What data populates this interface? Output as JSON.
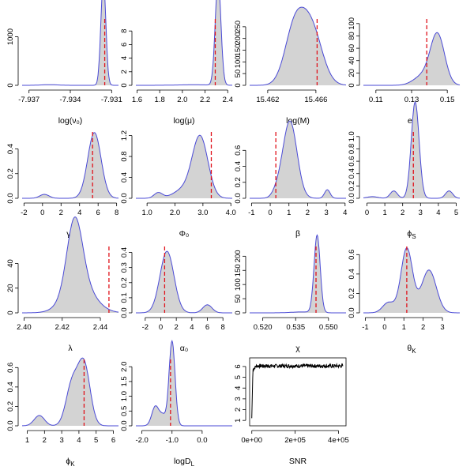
{
  "chart_data": [
    {
      "type": "area",
      "xlabel": "log(ν₀)",
      "xlim": [
        -7.9375,
        -7.9305
      ],
      "ylim": [
        0,
        1400
      ],
      "xticks": [
        -7.937,
        -7.934,
        -7.931
      ],
      "xtick_labels": [
        "-7.937",
        "-7.934",
        "-7.931"
      ],
      "yticks": [
        0,
        1000
      ],
      "ytick_labels": [
        "0",
        "1000"
      ],
      "truth": -7.9315,
      "components": [
        {
          "mu": -7.9316,
          "sd": 0.00018,
          "w": 0.98
        },
        {
          "mu": -7.9355,
          "sd": 0.0006,
          "w": 0.02
        }
      ]
    },
    {
      "type": "area",
      "xlabel": "log(μ)",
      "xlim": [
        1.59,
        2.44
      ],
      "ylim": [
        0,
        10
      ],
      "xticks": [
        1.6,
        1.8,
        2.0,
        2.2,
        2.4
      ],
      "xtick_labels": [
        "1.6",
        "1.8",
        "2.0",
        "2.2",
        "2.4"
      ],
      "yticks": [
        0,
        2,
        4,
        6,
        8
      ],
      "ytick_labels": [
        "0",
        "2",
        "4",
        "6",
        "8"
      ],
      "truth": 2.29,
      "components": [
        {
          "mu": 2.315,
          "sd": 0.025,
          "w": 0.97
        },
        {
          "mu": 2.1,
          "sd": 0.15,
          "w": 0.03
        }
      ]
    },
    {
      "type": "area",
      "xlabel": "log(M)",
      "xlim": [
        15.4605,
        15.4685
      ],
      "ylim": [
        0,
        290
      ],
      "xticks": [
        15.462,
        15.466
      ],
      "xtick_labels": [
        "15.462",
        "15.466"
      ],
      "yticks": [
        0,
        50,
        100,
        150,
        200,
        250
      ],
      "ytick_labels": [
        "0",
        "50",
        "100",
        "150",
        "200",
        "250"
      ],
      "truth": 15.4661,
      "components": [
        {
          "mu": 15.4642,
          "sd": 0.0008,
          "w": 0.45
        },
        {
          "mu": 15.4656,
          "sd": 0.0009,
          "w": 0.55
        }
      ]
    },
    {
      "type": "area",
      "xlabel": "e₀",
      "xlim": [
        0.103,
        0.157
      ],
      "ylim": [
        0,
        110
      ],
      "xticks": [
        0.11,
        0.13,
        0.15
      ],
      "xtick_labels": [
        "0.11",
        "0.13",
        "0.15"
      ],
      "yticks": [
        0,
        20,
        40,
        60,
        80,
        100
      ],
      "ytick_labels": [
        "0",
        "20",
        "40",
        "60",
        "80",
        "100"
      ],
      "truth": 0.1385,
      "components": [
        {
          "mu": 0.1445,
          "sd": 0.004,
          "w": 0.82
        },
        {
          "mu": 0.136,
          "sd": 0.005,
          "w": 0.18
        }
      ]
    },
    {
      "type": "area",
      "xlabel": "γ̃₀",
      "xlim": [
        -2.2,
        8.2
      ],
      "ylim": [
        0,
        0.55
      ],
      "xticks": [
        -2,
        0,
        2,
        4,
        6,
        8
      ],
      "xtick_labels": [
        "-2",
        "0",
        "2",
        "4",
        "6",
        "8"
      ],
      "yticks": [
        0,
        0.2,
        0.4
      ],
      "ytick_labels": [
        "0.0",
        "0.2",
        "0.4"
      ],
      "truth": 5.4,
      "components": [
        {
          "mu": 5.6,
          "sd": 0.72,
          "w": 0.96
        },
        {
          "mu": 0.2,
          "sd": 0.5,
          "w": 0.04
        }
      ]
    },
    {
      "type": "area",
      "xlabel": "Φ₀",
      "xlim": [
        0.6,
        4.05
      ],
      "ylim": [
        0,
        1.3
      ],
      "xticks": [
        1,
        2,
        3,
        4
      ],
      "xtick_labels": [
        "1.0",
        "2.0",
        "3.0",
        "4.0"
      ],
      "yticks": [
        0,
        0.4,
        0.8,
        1.2
      ],
      "ytick_labels": [
        "0.0",
        "0.4",
        "0.8",
        "1.2"
      ],
      "truth": 3.3,
      "components": [
        {
          "mu": 2.9,
          "sd": 0.28,
          "w": 0.82
        },
        {
          "mu": 2.3,
          "sd": 0.35,
          "w": 0.14
        },
        {
          "mu": 1.4,
          "sd": 0.15,
          "w": 0.04
        }
      ]
    },
    {
      "type": "area",
      "xlabel": "β",
      "xlim": [
        -1.1,
        4.05
      ],
      "ylim": [
        0,
        0.85
      ],
      "xticks": [
        -1,
        0,
        1,
        2,
        3,
        4
      ],
      "xtick_labels": [
        "-1",
        "0",
        "1",
        "2",
        "3",
        "4"
      ],
      "yticks": [
        0,
        0.2,
        0.4,
        0.6
      ],
      "ytick_labels": [
        "0.0",
        "0.2",
        "0.4",
        "0.6"
      ],
      "truth": 0.3,
      "components": [
        {
          "mu": 1.05,
          "sd": 0.38,
          "w": 0.92
        },
        {
          "mu": 0.35,
          "sd": 0.25,
          "w": 0.04
        },
        {
          "mu": 3.05,
          "sd": 0.15,
          "w": 0.04
        }
      ]
    },
    {
      "type": "area",
      "xlabel": "ϕS",
      "xlim": [
        -0.2,
        5.2
      ],
      "ylim": [
        0,
        1.1
      ],
      "xticks": [
        0,
        1,
        2,
        3,
        4,
        5
      ],
      "xtick_labels": [
        "0",
        "1",
        "2",
        "3",
        "4",
        "5"
      ],
      "yticks": [
        0,
        0.2,
        0.4,
        0.6,
        0.8,
        1.0
      ],
      "ytick_labels": [
        "0.0",
        "0.2",
        "0.4",
        "0.6",
        "0.8",
        "1.0"
      ],
      "truth": 2.6,
      "components": [
        {
          "mu": 2.7,
          "sd": 0.22,
          "w": 0.86
        },
        {
          "mu": 1.5,
          "sd": 0.2,
          "w": 0.06
        },
        {
          "mu": 4.6,
          "sd": 0.2,
          "w": 0.06
        },
        {
          "mu": 0.3,
          "sd": 0.3,
          "w": 0.02
        }
      ]
    },
    {
      "type": "area",
      "xlabel": "λ",
      "xlim": [
        2.399,
        2.4495
      ],
      "ylim": [
        0,
        55
      ],
      "xticks": [
        2.4,
        2.42,
        2.44
      ],
      "xtick_labels": [
        "2.40",
        "2.42",
        "2.44"
      ],
      "yticks": [
        0,
        20,
        40
      ],
      "ytick_labels": [
        "0",
        "20",
        "40"
      ],
      "truth": 2.4445,
      "components": [
        {
          "mu": 2.4265,
          "sd": 0.004,
          "w": 0.55
        },
        {
          "mu": 2.429,
          "sd": 0.0075,
          "w": 0.45
        }
      ]
    },
    {
      "type": "area",
      "xlabel": "α₀",
      "xlim": [
        -3.2,
        9.2
      ],
      "ylim": [
        0,
        0.45
      ],
      "xticks": [
        -2,
        0,
        2,
        4,
        6,
        8
      ],
      "xtick_labels": [
        "-2",
        "0",
        "2",
        "4",
        "6",
        "8"
      ],
      "yticks": [
        0,
        0.1,
        0.2,
        0.3,
        0.4
      ],
      "ytick_labels": [
        "0.0",
        "0.1",
        "0.2",
        "0.3",
        "0.4"
      ],
      "truth": 0.5,
      "components": [
        {
          "mu": 0.8,
          "sd": 0.9,
          "w": 0.92
        },
        {
          "mu": 6.0,
          "sd": 0.6,
          "w": 0.08
        }
      ]
    },
    {
      "type": "area",
      "xlabel": "χ",
      "xlim": [
        0.514,
        0.558
      ],
      "ylim": [
        0,
        240
      ],
      "xticks": [
        0.52,
        0.535,
        0.55
      ],
      "xtick_labels": [
        "0.520",
        "0.535",
        "0.550"
      ],
      "yticks": [
        0,
        50,
        100,
        150,
        200
      ],
      "ytick_labels": [
        "0",
        "50",
        "100",
        "150",
        "200"
      ],
      "truth": 0.5443,
      "components": [
        {
          "mu": 0.5448,
          "sd": 0.0014,
          "w": 0.96
        },
        {
          "mu": 0.538,
          "sd": 0.005,
          "w": 0.04
        }
      ]
    },
    {
      "type": "area",
      "xlabel": "θK",
      "xlim": [
        -1.1,
        3.9
      ],
      "ylim": [
        0,
        0.7
      ],
      "xticks": [
        -1,
        0,
        1,
        2,
        3
      ],
      "xtick_labels": [
        "-1",
        "0",
        "1",
        "2",
        "3"
      ],
      "yticks": [
        0,
        0.2,
        0.4,
        0.6
      ],
      "ytick_labels": [
        "0.0",
        "0.2",
        "0.4",
        "0.6"
      ],
      "truth": 1.15,
      "components": [
        {
          "mu": 1.15,
          "sd": 0.3,
          "w": 0.5
        },
        {
          "mu": 2.3,
          "sd": 0.38,
          "w": 0.42
        },
        {
          "mu": 0.2,
          "sd": 0.3,
          "w": 0.08
        }
      ]
    },
    {
      "type": "area",
      "xlabel": "ϕK",
      "xlim": [
        0.7,
        6.3
      ],
      "ylim": [
        0,
        0.7
      ],
      "xticks": [
        1,
        2,
        3,
        4,
        5,
        6
      ],
      "xtick_labels": [
        "1",
        "2",
        "3",
        "4",
        "5",
        "6"
      ],
      "yticks": [
        0,
        0.2,
        0.4,
        0.6
      ],
      "ytick_labels": [
        "0.0",
        "0.2",
        "0.4",
        "0.6"
      ],
      "truth": 4.3,
      "components": [
        {
          "mu": 4.3,
          "sd": 0.35,
          "w": 0.55
        },
        {
          "mu": 3.6,
          "sd": 0.35,
          "w": 0.37
        },
        {
          "mu": 1.7,
          "sd": 0.3,
          "w": 0.08
        }
      ]
    },
    {
      "type": "area",
      "xlabel": "logDL",
      "xlim": [
        -2.2,
        1.0
      ],
      "ylim": [
        0,
        2.3
      ],
      "xticks": [
        -2,
        -1,
        0
      ],
      "xtick_labels": [
        "-2.0",
        "-1.0",
        "0.0"
      ],
      "yticks": [
        0,
        0.5,
        1,
        1.5,
        2
      ],
      "ytick_labels": [
        "0.0",
        "0.5",
        "1.0",
        "1.5",
        "2.0"
      ],
      "truth": -1.05,
      "components": [
        {
          "mu": -1.0,
          "sd": 0.1,
          "w": 0.72
        },
        {
          "mu": -1.55,
          "sd": 0.12,
          "w": 0.2
        },
        {
          "mu": -1.3,
          "sd": 0.1,
          "w": 0.08
        }
      ]
    },
    {
      "type": "line",
      "xlabel": "SNR",
      "xlim": [
        -10000,
        435000
      ],
      "ylim": [
        0.5,
        6.8
      ],
      "xticks": [
        0,
        200000,
        400000
      ],
      "xtick_labels": [
        "0e+00",
        "2e+05",
        "4e+05"
      ],
      "yticks": [
        1,
        2,
        3,
        4,
        5,
        6
      ],
      "ytick_labels": [
        "1",
        "2",
        "3",
        "4",
        "5",
        "6"
      ],
      "plateau": 6.05,
      "x_end": 420000
    }
  ]
}
